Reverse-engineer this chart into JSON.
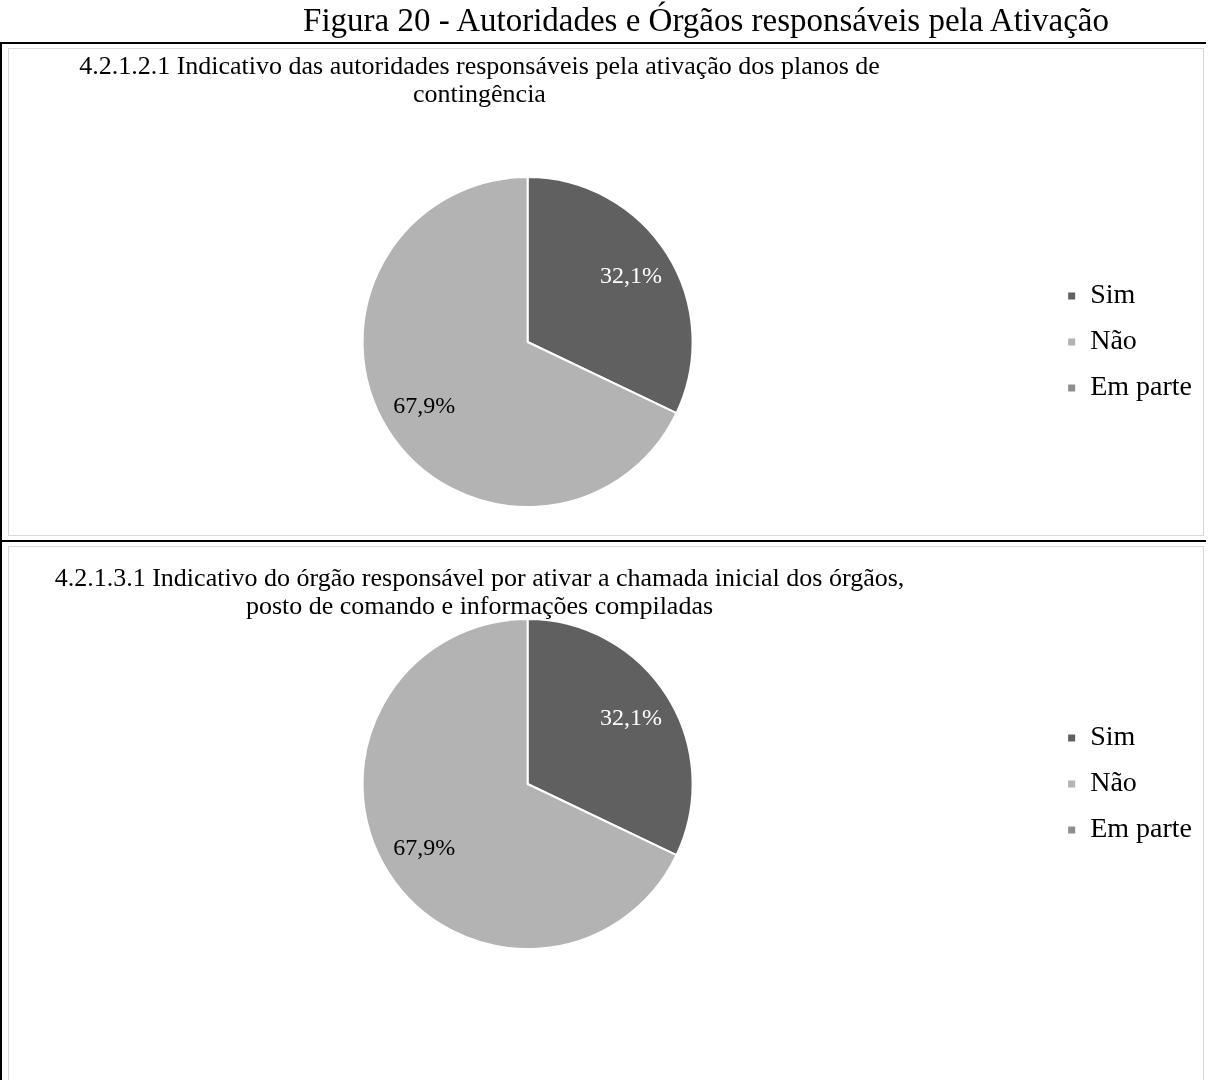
{
  "chart_data": [
    {
      "type": "pie",
      "title": "Figura 20 - Autoridades e Órgãos responsáveis pela Ativação",
      "subtitle": "4.2.1.2.1 Indicativo das autoridades responsáveis pela ativação dos planos de contingência",
      "categories": [
        "Sim",
        "Não",
        "Em parte"
      ],
      "values": [
        32.1,
        67.9,
        0
      ],
      "colors": [
        "#606060",
        "#b3b3b3",
        "#8e8e8e"
      ],
      "value_labels": [
        "32,1%",
        "67,9%",
        null
      ],
      "legend": "right"
    },
    {
      "type": "pie",
      "title": "4.2.1.3.1 Indicativo do órgão responsável por ativar a chamada inicial dos órgãos, posto de comando e informações compiladas",
      "categories": [
        "Sim",
        "Não",
        "Em parte"
      ],
      "values": [
        32.1,
        67.9,
        0
      ],
      "colors": [
        "#606060",
        "#b3b3b3",
        "#8e8e8e"
      ],
      "value_labels": [
        "32,1%",
        "67,9%",
        null
      ],
      "legend": "right"
    }
  ]
}
